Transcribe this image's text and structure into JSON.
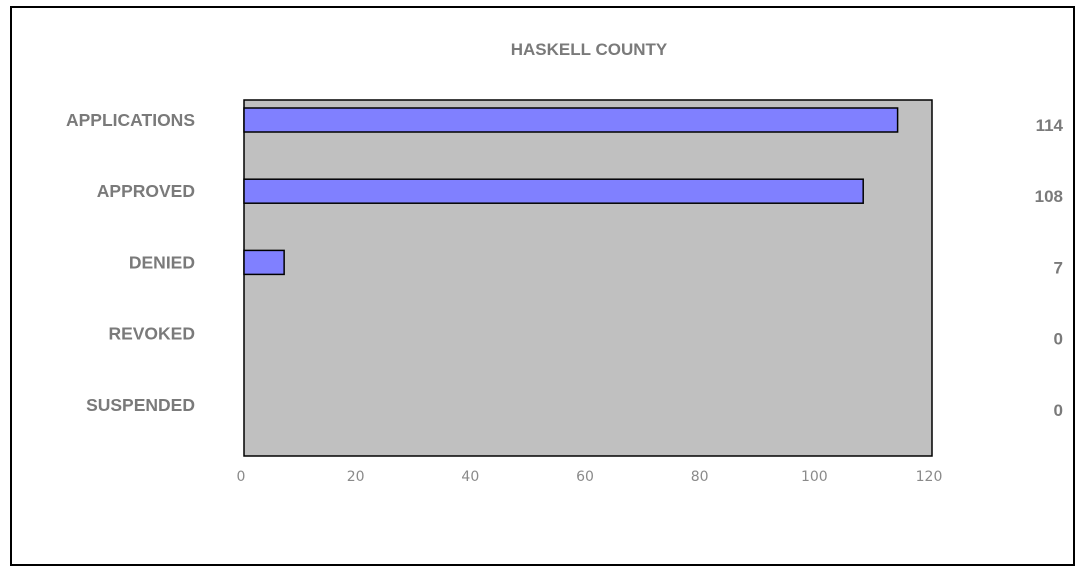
{
  "chart_data": {
    "type": "bar",
    "orientation": "horizontal",
    "title": "HASKELL COUNTY",
    "categories": [
      "APPLICATIONS",
      "APPROVED",
      "DENIED",
      "REVOKED",
      "SUSPENDED"
    ],
    "values": [
      114,
      108,
      7,
      0,
      0
    ],
    "value_labels": [
      "114",
      "108",
      "7",
      "0",
      "0"
    ],
    "xlim": [
      0,
      120
    ],
    "xticks": [
      0,
      20,
      40,
      60,
      80,
      100,
      120
    ],
    "grid": false,
    "legend": "none",
    "colors": {
      "bar": "#8080ff",
      "plot_background": "#c0c0c0",
      "text": "#7a7a7a"
    }
  }
}
